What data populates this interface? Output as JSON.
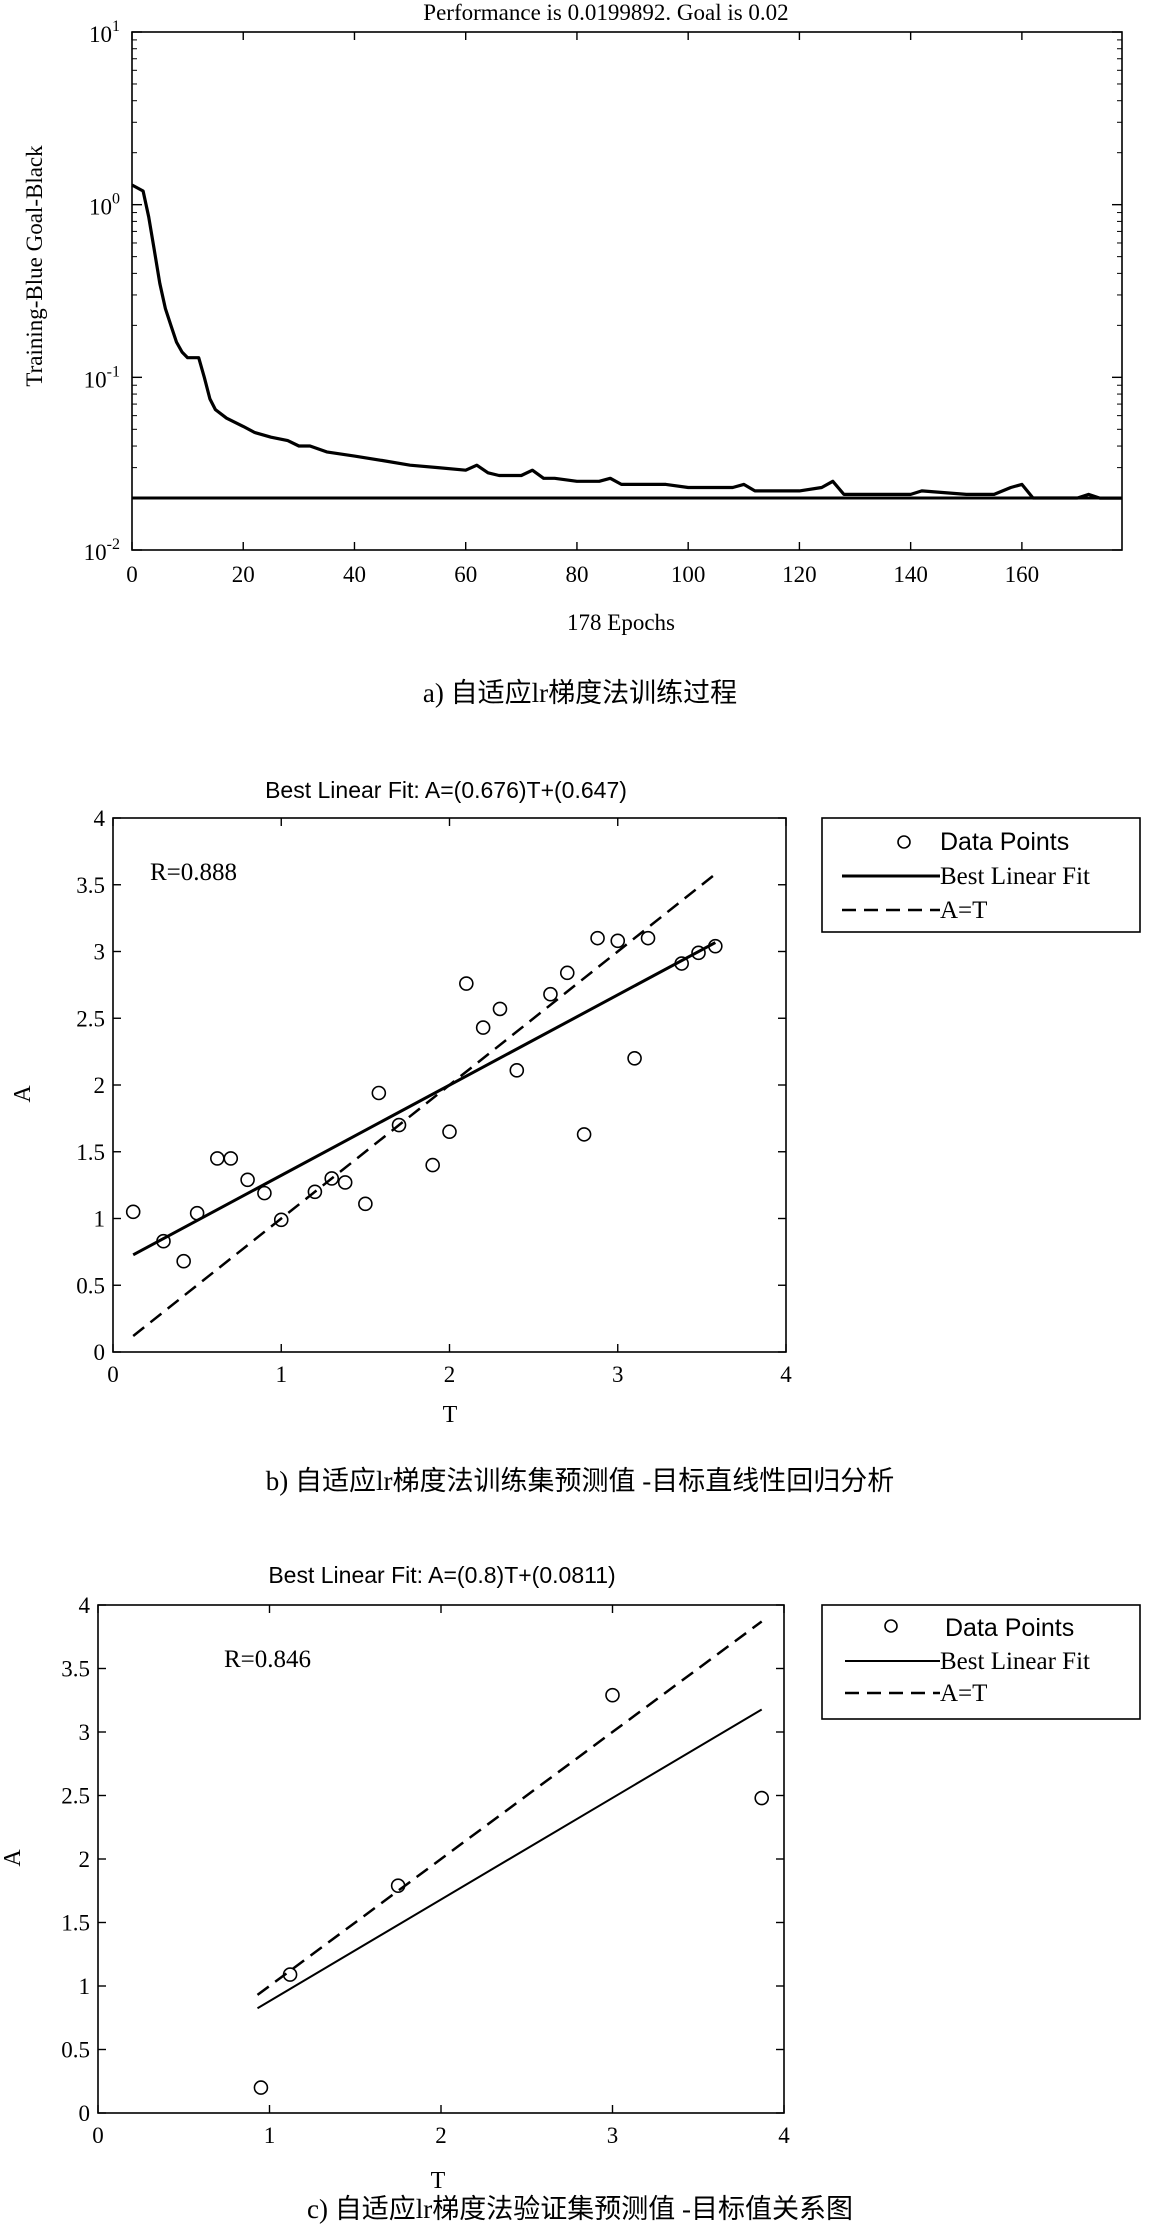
{
  "figure": {
    "caption_a": "a) 自适应lr梯度法训练过程",
    "caption_b": "b) 自适应lr梯度法训练集预测值 -目标直线性回归分析",
    "caption_c": "c) 自适应lr梯度法验证集预测值 -目标值关系图"
  },
  "chart_data": [
    {
      "type": "line",
      "title": "Performance is 0.0199892. Goal is 0.02",
      "xlabel": "178 Epochs",
      "ylabel": "Training-Blue Goal-Black",
      "yscale": "log",
      "xlim": [
        0,
        178
      ],
      "ylim": [
        0.01,
        10
      ],
      "xticks": [
        0,
        20,
        40,
        60,
        80,
        100,
        120,
        140,
        160
      ],
      "ytick_labels": [
        {
          "base": "10",
          "exp": "-2",
          "value": 0.01
        },
        {
          "base": "10",
          "exp": "-1",
          "value": 0.1
        },
        {
          "base": "10",
          "exp": "0",
          "value": 1
        },
        {
          "base": "10",
          "exp": "1",
          "value": 10
        }
      ],
      "series": [
        {
          "role": "training",
          "color": "#000000",
          "x": [
            0,
            2,
            3,
            4,
            5,
            6,
            7,
            8,
            9,
            10,
            11,
            12,
            13,
            14,
            15,
            17,
            20,
            22,
            25,
            28,
            30,
            32,
            35,
            40,
            45,
            50,
            55,
            60,
            62,
            64,
            66,
            70,
            72,
            74,
            76,
            80,
            84,
            86,
            88,
            92,
            96,
            100,
            105,
            108,
            110,
            112,
            120,
            124,
            126,
            128,
            135,
            140,
            142,
            150,
            155,
            158,
            160,
            162,
            165,
            170,
            172,
            174,
            178
          ],
          "y": [
            1.3,
            1.2,
            0.85,
            0.55,
            0.35,
            0.25,
            0.2,
            0.16,
            0.14,
            0.13,
            0.13,
            0.13,
            0.1,
            0.075,
            0.065,
            0.058,
            0.052,
            0.048,
            0.045,
            0.043,
            0.04,
            0.04,
            0.037,
            0.035,
            0.033,
            0.031,
            0.03,
            0.029,
            0.031,
            0.028,
            0.027,
            0.027,
            0.029,
            0.026,
            0.026,
            0.025,
            0.025,
            0.026,
            0.024,
            0.024,
            0.024,
            0.023,
            0.023,
            0.023,
            0.024,
            0.022,
            0.022,
            0.023,
            0.025,
            0.021,
            0.021,
            0.021,
            0.022,
            0.021,
            0.021,
            0.023,
            0.024,
            0.02,
            0.02,
            0.02,
            0.021,
            0.0199892,
            0.0199892
          ]
        },
        {
          "role": "goal",
          "color": "#000000",
          "x": [
            0,
            178
          ],
          "y": [
            0.02,
            0.02
          ]
        }
      ]
    },
    {
      "type": "scatter",
      "title": "Best Linear Fit:  A=(0.676)T+(0.647)",
      "xlabel": "T",
      "ylabel": "A",
      "xlim": [
        0,
        4
      ],
      "ylim": [
        0,
        4
      ],
      "xticks": [
        0,
        1,
        2,
        3,
        4
      ],
      "yticks": [
        0,
        0.5,
        1,
        1.5,
        2,
        2.5,
        3,
        3.5,
        4
      ],
      "annotation": "R=0.888",
      "legend": {
        "placement": "outside-right",
        "entries": [
          "Data Points",
          "Best Linear Fit",
          "A=T"
        ]
      },
      "points": {
        "x": [
          0.12,
          0.3,
          0.42,
          0.5,
          0.62,
          0.7,
          0.8,
          0.9,
          1.0,
          1.2,
          1.3,
          1.38,
          1.5,
          1.58,
          1.7,
          1.9,
          2.0,
          2.1,
          2.2,
          2.3,
          2.4,
          2.6,
          2.7,
          2.8,
          2.88,
          3.0,
          3.1,
          3.18,
          3.38,
          3.48,
          3.58
        ],
        "y": [
          1.05,
          0.83,
          0.68,
          1.04,
          1.45,
          1.45,
          1.29,
          1.19,
          0.99,
          1.2,
          1.3,
          1.27,
          1.11,
          1.94,
          1.7,
          1.4,
          1.65,
          2.76,
          2.43,
          2.57,
          2.11,
          2.68,
          2.84,
          1.63,
          3.1,
          3.08,
          2.2,
          3.1,
          2.91,
          2.99,
          3.04
        ]
      },
      "fit": {
        "slope": 0.676,
        "intercept": 0.647,
        "x_range": [
          0.12,
          3.58
        ]
      },
      "identity": {
        "x_range": [
          0.12,
          3.58
        ]
      }
    },
    {
      "type": "scatter",
      "title": "Best Linear Fit:  A=(0.8)T+(0.0811)",
      "xlabel": "T",
      "ylabel": "A",
      "xlim": [
        0,
        4
      ],
      "ylim": [
        0,
        4
      ],
      "xticks": [
        0,
        1,
        2,
        3,
        4
      ],
      "yticks": [
        0,
        0.5,
        1,
        1.5,
        2,
        2.5,
        3,
        3.5,
        4
      ],
      "annotation": "R=0.846",
      "legend": {
        "placement": "outside-right",
        "entries": [
          "Data Points",
          "Best Linear Fit",
          "A=T"
        ]
      },
      "points": {
        "x": [
          0.95,
          1.12,
          1.75,
          3.0,
          3.87
        ],
        "y": [
          0.2,
          1.09,
          1.79,
          3.29,
          2.48
        ]
      },
      "fit": {
        "slope": 0.8,
        "intercept": 0.0811,
        "x_range": [
          0.93,
          3.87
        ]
      },
      "identity": {
        "x_range": [
          0.93,
          3.87
        ]
      }
    }
  ]
}
